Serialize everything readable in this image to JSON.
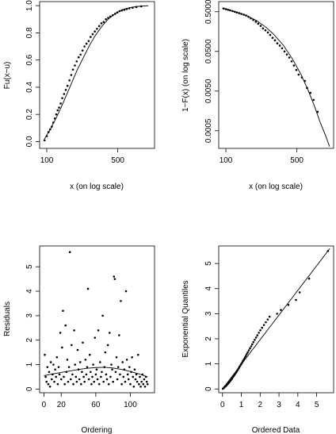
{
  "chart_data": [
    {
      "id": "p1",
      "type": "scatter",
      "xlabel": "x (on log scale)",
      "ylabel": "Fu(x−u)",
      "xscale": "log",
      "xlim": [
        85,
        1150
      ],
      "ylim": [
        -0.05,
        1.03
      ],
      "xticks": [
        100,
        500
      ],
      "xtick_labels": [
        "100",
        "500"
      ],
      "yticks": [
        0.0,
        0.2,
        0.4,
        0.6,
        0.8,
        1.0
      ],
      "ytick_labels": [
        "0.0",
        "0.2",
        "0.4",
        "0.6",
        "0.8",
        "1.0"
      ],
      "series": [
        {
          "kind": "points",
          "x": [
            95,
            100,
            104,
            108,
            112,
            116,
            120,
            124,
            128,
            132,
            137,
            142,
            148,
            154,
            160,
            167,
            174,
            181,
            189,
            197,
            206,
            215,
            225,
            235,
            246,
            258,
            270,
            283,
            297,
            312,
            328,
            345,
            363,
            382,
            402,
            423,
            446,
            470,
            495,
            522,
            550,
            580,
            612,
            650,
            700,
            760,
            850
          ],
          "y": [
            0.01,
            0.04,
            0.07,
            0.09,
            0.11,
            0.14,
            0.17,
            0.2,
            0.23,
            0.25,
            0.28,
            0.32,
            0.35,
            0.38,
            0.41,
            0.45,
            0.49,
            0.53,
            0.56,
            0.59,
            0.62,
            0.64,
            0.67,
            0.7,
            0.72,
            0.74,
            0.77,
            0.79,
            0.81,
            0.83,
            0.85,
            0.87,
            0.88,
            0.9,
            0.91,
            0.92,
            0.93,
            0.94,
            0.95,
            0.96,
            0.965,
            0.97,
            0.975,
            0.98,
            0.985,
            0.99,
            0.995
          ]
        },
        {
          "kind": "line",
          "x": [
            95,
            110,
            125,
            140,
            160,
            180,
            200,
            230,
            260,
            300,
            350,
            400,
            470,
            550,
            650,
            800,
            1000
          ],
          "y": [
            0.02,
            0.1,
            0.18,
            0.26,
            0.36,
            0.45,
            0.53,
            0.62,
            0.7,
            0.78,
            0.85,
            0.9,
            0.94,
            0.97,
            0.985,
            0.995,
            1.0
          ]
        }
      ]
    },
    {
      "id": "p2",
      "type": "scatter",
      "xlabel": "x (on log scale)",
      "ylabel": "1−F(x) (on log scale)",
      "xscale": "log",
      "yscale": "log",
      "xlim": [
        85,
        1150
      ],
      "ylim": [
        0.00018,
        0.9
      ],
      "xticks": [
        100,
        500
      ],
      "xtick_labels": [
        "100",
        "500"
      ],
      "yticks": [
        0.5,
        0.05,
        0.005,
        0.0005
      ],
      "ytick_labels": [
        "0.5000",
        "0.0500",
        "0.0050",
        "0.0005"
      ],
      "series": [
        {
          "kind": "points",
          "x": [
            95,
            100,
            105,
            110,
            116,
            122,
            128,
            135,
            142,
            150,
            158,
            167,
            176,
            186,
            197,
            208,
            220,
            232,
            245,
            259,
            273,
            288,
            304,
            321,
            339,
            358,
            378,
            399,
            421,
            444,
            468,
            494,
            520,
            560,
            600,
            630,
            680,
            730,
            800
          ],
          "y": [
            0.6,
            0.58,
            0.56,
            0.54,
            0.52,
            0.5,
            0.48,
            0.46,
            0.44,
            0.42,
            0.4,
            0.37,
            0.34,
            0.31,
            0.28,
            0.25,
            0.22,
            0.19,
            0.17,
            0.15,
            0.13,
            0.11,
            0.095,
            0.08,
            0.07,
            0.06,
            0.05,
            0.042,
            0.035,
            0.028,
            0.022,
            0.017,
            0.013,
            0.011,
            0.009,
            0.006,
            0.0045,
            0.003,
            0.0015
          ]
        },
        {
          "kind": "line",
          "x": [
            92,
            110,
            130,
            160,
            200,
            250,
            300,
            370,
            450,
            550,
            650,
            750,
            850,
            950,
            1050
          ],
          "y": [
            0.62,
            0.55,
            0.48,
            0.4,
            0.3,
            0.2,
            0.13,
            0.07,
            0.033,
            0.013,
            0.005,
            0.002,
            0.0008,
            0.0004,
            0.0002
          ]
        }
      ]
    },
    {
      "id": "p3",
      "type": "scatter",
      "xlabel": "Ordering",
      "ylabel": "Residuals",
      "xlim": [
        -5,
        128
      ],
      "ylim": [
        -0.15,
        5.85
      ],
      "xticks": [
        0,
        20,
        60,
        100
      ],
      "xtick_labels": [
        "0",
        "20",
        "60",
        "100"
      ],
      "yticks": [
        0,
        1,
        2,
        3,
        4,
        5
      ],
      "ytick_labels": [
        "0",
        "1",
        "2",
        "3",
        "4",
        "5"
      ],
      "series": [
        {
          "kind": "points",
          "x": [
            1,
            2,
            3,
            4,
            5,
            6,
            7,
            8,
            9,
            10,
            11,
            12,
            13,
            14,
            15,
            16,
            17,
            18,
            19,
            20,
            21,
            22,
            23,
            24,
            25,
            26,
            27,
            28,
            29,
            30,
            31,
            32,
            33,
            34,
            35,
            36,
            37,
            38,
            39,
            40,
            41,
            42,
            43,
            44,
            45,
            46,
            47,
            48,
            49,
            50,
            51,
            52,
            53,
            54,
            55,
            56,
            57,
            58,
            59,
            60,
            61,
            62,
            63,
            64,
            65,
            66,
            67,
            68,
            69,
            70,
            71,
            72,
            73,
            74,
            75,
            76,
            77,
            78,
            79,
            80,
            81,
            82,
            83,
            84,
            85,
            86,
            87,
            88,
            89,
            90,
            91,
            92,
            93,
            94,
            95,
            96,
            97,
            98,
            99,
            100,
            101,
            102,
            103,
            104,
            105,
            106,
            107,
            108,
            109,
            110,
            111,
            112,
            113,
            114,
            115,
            116,
            117,
            118,
            119,
            120
          ],
          "y": [
            1.4,
            0.5,
            0.3,
            0.9,
            0.2,
            0.7,
            0.1,
            1.1,
            0.4,
            0.6,
            1.0,
            0.3,
            0.8,
            0.5,
            1.3,
            0.2,
            0.9,
            0.6,
            2.3,
            0.4,
            1.7,
            3.2,
            0.5,
            0.2,
            2.6,
            0.7,
            1.2,
            0.3,
            0.9,
            5.6,
            0.4,
            1.8,
            0.6,
            0.2,
            2.4,
            1.0,
            0.5,
            0.3,
            1.6,
            0.8,
            0.4,
            1.1,
            0.2,
            0.7,
            1.9,
            0.5,
            0.3,
            1.2,
            0.6,
            0.9,
            4.1,
            0.4,
            1.4,
            0.7,
            0.2,
            0.5,
            1.0,
            0.3,
            2.1,
            0.6,
            0.8,
            0.4,
            2.4,
            0.2,
            1.1,
            0.5,
            0.7,
            3.0,
            0.3,
            0.9,
            1.5,
            0.6,
            0.4,
            1.8,
            0.2,
            2.3,
            0.5,
            1.0,
            0.8,
            0.3,
            4.6,
            4.5,
            0.7,
            1.3,
            0.4,
            0.9,
            2.2,
            0.6,
            3.6,
            0.2,
            1.1,
            0.5,
            0.8,
            0.3,
            4.0,
            1.2,
            0.6,
            0.4,
            0.9,
            0.2,
            0.7,
            1.3,
            0.5,
            0.1,
            0.8,
            0.4,
            0.6,
            0.3,
            1.4,
            0.2,
            0.5,
            0.1,
            0.3,
            0.6,
            0.2,
            0.4,
            0.1,
            0.5,
            0.3,
            0.2
          ]
        },
        {
          "kind": "line",
          "x": [
            0,
            10,
            20,
            30,
            40,
            50,
            60,
            70,
            80,
            90,
            100,
            110,
            120
          ],
          "y": [
            0.55,
            0.62,
            0.68,
            0.74,
            0.8,
            0.85,
            0.88,
            0.89,
            0.86,
            0.8,
            0.72,
            0.62,
            0.5
          ]
        }
      ]
    },
    {
      "id": "p4",
      "type": "scatter",
      "xlabel": "Ordered Data",
      "ylabel": "Exponential Quantiles",
      "xlim": [
        -0.2,
        5.9
      ],
      "ylim": [
        -0.15,
        5.7
      ],
      "xticks": [
        0,
        1,
        2,
        3,
        4,
        5
      ],
      "xtick_labels": [
        "0",
        "1",
        "2",
        "3",
        "4",
        "5"
      ],
      "yticks": [
        0,
        1,
        2,
        3,
        4,
        5
      ],
      "ytick_labels": [
        "0",
        "1",
        "2",
        "3",
        "4",
        "5"
      ],
      "series": [
        {
          "kind": "points",
          "x": [
            0.02,
            0.05,
            0.08,
            0.1,
            0.13,
            0.16,
            0.19,
            0.22,
            0.25,
            0.28,
            0.31,
            0.35,
            0.38,
            0.42,
            0.45,
            0.49,
            0.52,
            0.56,
            0.6,
            0.63,
            0.67,
            0.71,
            0.75,
            0.79,
            0.83,
            0.87,
            0.91,
            0.96,
            1.0,
            1.05,
            1.09,
            1.14,
            1.19,
            1.24,
            1.29,
            1.34,
            1.4,
            1.46,
            1.52,
            1.58,
            1.64,
            1.71,
            1.78,
            1.85,
            1.93,
            2.01,
            2.1,
            2.2,
            2.3,
            2.4,
            2.5,
            2.9,
            3.1,
            3.5,
            3.9,
            4.1,
            4.6,
            5.6
          ],
          "y": [
            0.01,
            0.03,
            0.05,
            0.07,
            0.09,
            0.11,
            0.13,
            0.15,
            0.18,
            0.2,
            0.23,
            0.26,
            0.29,
            0.33,
            0.36,
            0.4,
            0.44,
            0.48,
            0.52,
            0.56,
            0.6,
            0.64,
            0.69,
            0.74,
            0.79,
            0.84,
            0.89,
            0.95,
            1.0,
            1.06,
            1.12,
            1.18,
            1.25,
            1.32,
            1.39,
            1.46,
            1.54,
            1.62,
            1.7,
            1.78,
            1.87,
            1.96,
            2.05,
            2.14,
            2.24,
            2.34,
            2.44,
            2.55,
            2.66,
            2.77,
            2.88,
            3.0,
            3.15,
            3.35,
            3.55,
            3.85,
            4.4,
            5.5
          ]
        },
        {
          "kind": "line",
          "x": [
            0,
            5.7
          ],
          "y": [
            0,
            5.6
          ]
        }
      ]
    }
  ]
}
